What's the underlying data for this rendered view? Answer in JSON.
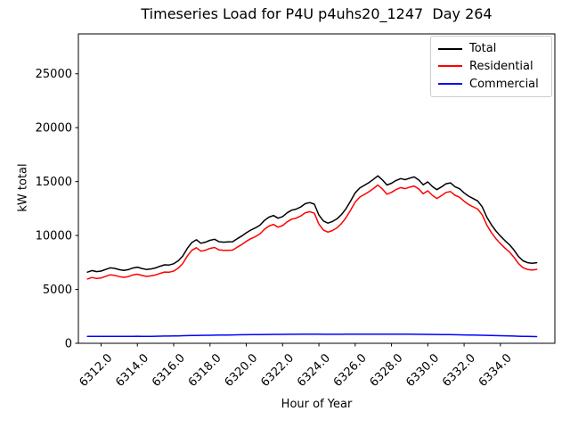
{
  "figure": {
    "title": "Timeseries Load for P4U p4uhs20_1247  Day 264",
    "xlabel": "Hour of Year",
    "ylabel": "kW total"
  },
  "legend": {
    "entries": [
      {
        "label": "Total",
        "color": "#000000"
      },
      {
        "label": "Residential",
        "color": "#ff0000"
      },
      {
        "label": "Commercial",
        "color": "#0000ff"
      }
    ]
  },
  "chart_data": {
    "type": "line",
    "title": "Timeseries Load for P4U p4uhs20_1247  Day 264",
    "xlabel": "Hour of Year",
    "ylabel": "kW total",
    "grid": false,
    "legend_position": "upper right",
    "xlim": [
      6310.75,
      6337.0
    ],
    "ylim": [
      0,
      28700
    ],
    "xticks": [
      6312,
      6314,
      6316,
      6318,
      6320,
      6322,
      6324,
      6326,
      6328,
      6330,
      6332,
      6334
    ],
    "xtick_labels": [
      "6312.0",
      "6314.0",
      "6316.0",
      "6318.0",
      "6320.0",
      "6322.0",
      "6324.0",
      "6326.0",
      "6328.0",
      "6330.0",
      "6332.0",
      "6334.0"
    ],
    "yticks": [
      0,
      5000,
      10000,
      15000,
      20000,
      25000
    ],
    "ytick_labels": [
      "0",
      "5000",
      "10000",
      "15000",
      "20000",
      "25000"
    ],
    "x": [
      6311.25,
      6311.5,
      6311.75,
      6312.0,
      6312.25,
      6312.5,
      6312.75,
      6313.0,
      6313.25,
      6313.5,
      6313.75,
      6314.0,
      6314.25,
      6314.5,
      6314.75,
      6315.0,
      6315.25,
      6315.5,
      6315.75,
      6316.0,
      6316.25,
      6316.5,
      6316.75,
      6317.0,
      6317.25,
      6317.5,
      6317.75,
      6318.0,
      6318.25,
      6318.5,
      6318.75,
      6319.0,
      6319.25,
      6319.5,
      6319.75,
      6320.0,
      6320.25,
      6320.5,
      6320.75,
      6321.0,
      6321.25,
      6321.5,
      6321.75,
      6322.0,
      6322.25,
      6322.5,
      6322.75,
      6323.0,
      6323.25,
      6323.5,
      6323.75,
      6324.0,
      6324.25,
      6324.5,
      6324.75,
      6325.0,
      6325.25,
      6325.5,
      6325.75,
      6326.0,
      6326.25,
      6326.5,
      6326.75,
      6327.0,
      6327.25,
      6327.5,
      6327.75,
      6328.0,
      6328.25,
      6328.5,
      6328.75,
      6329.0,
      6329.25,
      6329.5,
      6329.75,
      6330.0,
      6330.25,
      6330.5,
      6330.75,
      6331.0,
      6331.25,
      6331.5,
      6331.75,
      6332.0,
      6332.25,
      6332.5,
      6332.75,
      6333.0,
      6333.25,
      6333.5,
      6333.75,
      6334.0,
      6334.25,
      6334.5,
      6334.75,
      6335.0,
      6335.25,
      6335.5,
      6335.75,
      6336.0
    ],
    "series": [
      {
        "name": "Total",
        "color": "#000000",
        "values": [
          6600,
          6750,
          6650,
          6700,
          6850,
          7000,
          6950,
          6830,
          6760,
          6830,
          6980,
          7060,
          6940,
          6850,
          6900,
          6990,
          7150,
          7280,
          7260,
          7380,
          7650,
          8100,
          8800,
          9350,
          9600,
          9280,
          9380,
          9550,
          9650,
          9420,
          9380,
          9400,
          9420,
          9700,
          9950,
          10250,
          10500,
          10700,
          10950,
          11400,
          11700,
          11850,
          11600,
          11750,
          12100,
          12350,
          12450,
          12650,
          12950,
          13050,
          12900,
          11900,
          11350,
          11150,
          11300,
          11550,
          11950,
          12500,
          13200,
          13950,
          14400,
          14650,
          14900,
          15200,
          15530,
          15150,
          14680,
          14850,
          15100,
          15280,
          15180,
          15320,
          15430,
          15150,
          14700,
          14970,
          14550,
          14250,
          14500,
          14800,
          14880,
          14520,
          14330,
          13950,
          13650,
          13420,
          13200,
          12650,
          11700,
          11000,
          10420,
          9950,
          9520,
          9150,
          8650,
          8050,
          7650,
          7480,
          7420,
          7480
        ]
      },
      {
        "name": "Residential",
        "color": "#ff0000",
        "values": [
          5960,
          6105,
          6010,
          6062,
          6208,
          6352,
          6305,
          6190,
          6122,
          6188,
          6332,
          6408,
          6292,
          6205,
          6252,
          6335,
          6488,
          6612,
          6588,
          6700,
          6960,
          7400,
          8088,
          8628,
          8870,
          8544,
          8638,
          8802,
          8895,
          8660,
          8615,
          8630,
          8644,
          8918,
          9160,
          9454,
          9698,
          9892,
          10138,
          10582,
          10878,
          11024,
          10772,
          10920,
          11266,
          11514,
          11612,
          11810,
          12108,
          12206,
          12057,
          11060,
          10512,
          10314,
          10465,
          10714,
          11112,
          11660,
          12358,
          13105,
          13553,
          13802,
          14050,
          14349,
          14678,
          14300,
          13832,
          14004,
          14255,
          14437,
          14339,
          14480,
          14592,
          14315,
          13870,
          14144,
          13730,
          13435,
          13690,
          13995,
          14080,
          13727,
          13544,
          13172,
          12880,
          12658,
          12446,
          11905,
          10965,
          10275,
          9706,
          9247,
          8828,
          8470,
          7982,
          7394,
          7005,
          6845,
          6794,
          6860
        ]
      },
      {
        "name": "Commercial",
        "color": "#0000ff",
        "values": [
          640,
          645,
          640,
          638,
          642,
          648,
          645,
          640,
          638,
          642,
          648,
          652,
          648,
          645,
          648,
          655,
          662,
          668,
          672,
          680,
          690,
          700,
          712,
          722,
          730,
          736,
          742,
          748,
          755,
          760,
          765,
          770,
          776,
          782,
          790,
          796,
          802,
          808,
          812,
          818,
          822,
          826,
          828,
          830,
          834,
          836,
          838,
          840,
          842,
          844,
          843,
          840,
          838,
          836,
          835,
          836,
          838,
          840,
          842,
          845,
          847,
          848,
          850,
          851,
          852,
          850,
          848,
          846,
          845,
          843,
          841,
          840,
          838,
          835,
          830,
          826,
          820,
          815,
          810,
          805,
          800,
          793,
          786,
          778,
          770,
          762,
          754,
          745,
          735,
          725,
          714,
          703,
          692,
          680,
          668,
          656,
          645,
          635,
          626,
          620
        ]
      }
    ]
  }
}
